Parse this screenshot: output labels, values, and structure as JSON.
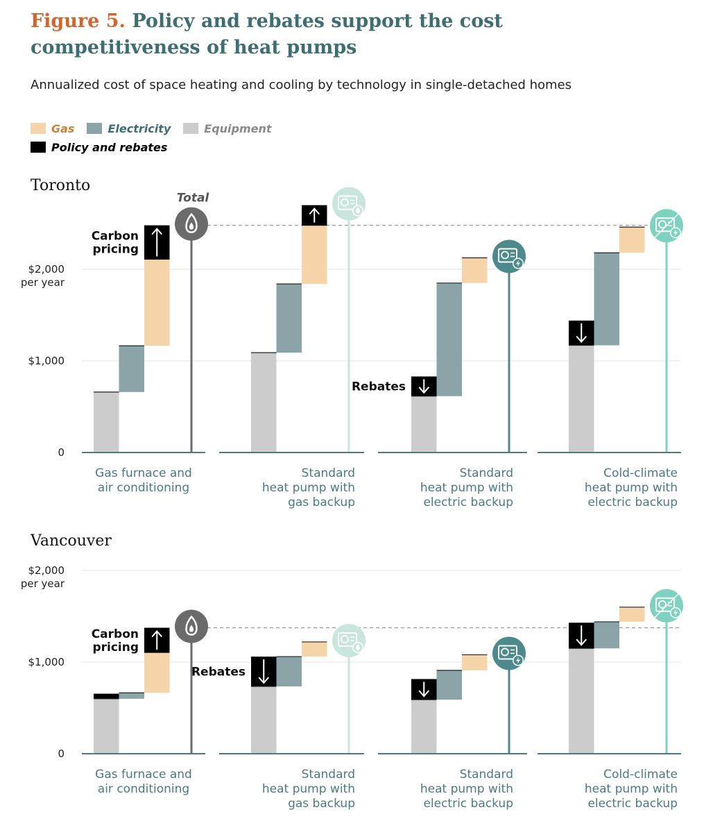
{
  "title": {
    "figure_number": "Figure 5.",
    "text": "Policy and rebates support the cost competitiveness of heat pumps"
  },
  "subtitle": "Annualized cost of space heating and cooling by technology in single-detached homes",
  "legend": [
    {
      "key": "gas",
      "label": "Gas",
      "color": "#f7d5aa",
      "text_color": "#c9823a"
    },
    {
      "key": "electricity",
      "label": "Electricity",
      "color": "#8aa4a8",
      "text_color": "#3e6e72"
    },
    {
      "key": "equipment",
      "label": "Equipment",
      "color": "#cccccc",
      "text_color": "#8a8a8a"
    },
    {
      "key": "policy",
      "label": "Policy and rebates",
      "color": "#000000",
      "text_color": "#000000"
    }
  ],
  "icon_names": [
    "gas-flame-icon",
    "heat-pump-gas-backup-icon",
    "heat-pump-electric-backup-icon",
    "cold-climate-heat-pump-icon"
  ],
  "colors": {
    "gas_total_line": "#6b6b6b",
    "hp_gas_line": "#c8e6de",
    "hp_elec_line": "#4d8a8c",
    "cold_climate_line": "#7dd3c0",
    "axis": "#4c7a80",
    "grid": "#e6e6e6"
  },
  "chart_data": [
    {
      "type": "bar",
      "subtype": "waterfall",
      "title": "Toronto",
      "ylabel": "per year",
      "ylim": [
        0,
        2500
      ],
      "yticks": [
        {
          "value": 0,
          "label": "0"
        },
        {
          "value": 1000,
          "label": "$1,000"
        },
        {
          "value": 2000,
          "label": "$2,000"
        }
      ],
      "total_label": "Total",
      "categories": [
        {
          "label": [
            "Gas furnace and",
            "air conditioning"
          ],
          "align": "center",
          "icon": "gas-flame-icon",
          "steps": [
            {
              "component": "equipment",
              "from": 0,
              "to": 660
            },
            {
              "component": "electricity",
              "from": 660,
              "to": 1165
            },
            {
              "component": "gas",
              "from": 1165,
              "to": 2110
            },
            {
              "component": "policy",
              "from": 2110,
              "to": 2480,
              "arrow": "up",
              "annotation": [
                "Carbon",
                "pricing"
              ]
            }
          ],
          "total": 2480
        },
        {
          "label": [
            "Standard",
            "heat pump with",
            "gas backup"
          ],
          "align": "right",
          "icon": "heat-pump-gas-backup-icon",
          "steps": [
            {
              "component": "equipment",
              "from": 0,
              "to": 1090
            },
            {
              "component": "electricity",
              "from": 1090,
              "to": 1840
            },
            {
              "component": "gas",
              "from": 1840,
              "to": 2480
            },
            {
              "component": "policy",
              "from": 2480,
              "to": 2700,
              "arrow": "up"
            }
          ],
          "total": 2700
        },
        {
          "label": [
            "Standard",
            "heat pump with",
            "electric backup"
          ],
          "align": "right",
          "icon": "heat-pump-electric-backup-icon",
          "steps": [
            {
              "component": "policy",
              "from": 615,
              "to": 830,
              "arrow": "down",
              "annotation": [
                "Rebates"
              ]
            },
            {
              "component": "equipment",
              "from": 0,
              "to": 615
            },
            {
              "component": "electricity",
              "from": 615,
              "to": 1850
            },
            {
              "component": "gas",
              "from": 1850,
              "to": 2125
            }
          ],
          "total": 2125
        },
        {
          "label": [
            "Cold-climate",
            "heat pump with",
            "electric backup"
          ],
          "align": "right",
          "icon": "cold-climate-heat-pump-icon",
          "steps": [
            {
              "component": "policy",
              "from": 1170,
              "to": 1440,
              "arrow": "down"
            },
            {
              "component": "equipment",
              "from": 0,
              "to": 1170
            },
            {
              "component": "electricity",
              "from": 1170,
              "to": 2180
            },
            {
              "component": "gas",
              "from": 2180,
              "to": 2460
            }
          ],
          "total": 2460
        }
      ],
      "reference_total": 2480
    },
    {
      "type": "bar",
      "subtype": "waterfall",
      "title": "Vancouver",
      "ylabel": "per year",
      "ylim": [
        0,
        2000
      ],
      "yticks": [
        {
          "value": 0,
          "label": "0"
        },
        {
          "value": 1000,
          "label": "$1,000"
        },
        {
          "value": 2000,
          "label": "$2,000"
        }
      ],
      "categories": [
        {
          "label": [
            "Gas furnace and",
            "air conditioning"
          ],
          "align": "center",
          "icon": "gas-flame-icon",
          "steps": [
            {
              "component": "policy",
              "from": 600,
              "to": 655
            },
            {
              "component": "equipment",
              "from": 0,
              "to": 600
            },
            {
              "component": "electricity",
              "from": 600,
              "to": 665
            },
            {
              "component": "gas",
              "from": 665,
              "to": 1105
            },
            {
              "component": "policy",
              "from": 1105,
              "to": 1375,
              "arrow": "up",
              "annotation": [
                "Carbon",
                "pricing"
              ]
            }
          ],
          "total": 1375
        },
        {
          "label": [
            "Standard",
            "heat pump with",
            "gas backup"
          ],
          "align": "right",
          "icon": "heat-pump-gas-backup-icon",
          "steps": [
            {
              "component": "policy",
              "from": 735,
              "to": 1060,
              "arrow": "down",
              "annotation": [
                "Rebates"
              ]
            },
            {
              "component": "equipment",
              "from": 0,
              "to": 735
            },
            {
              "component": "electricity",
              "from": 735,
              "to": 1060
            },
            {
              "component": "gas",
              "from": 1060,
              "to": 1220
            }
          ],
          "total": 1220
        },
        {
          "label": [
            "Standard",
            "heat pump with",
            "electric backup"
          ],
          "align": "right",
          "icon": "heat-pump-electric-backup-icon",
          "steps": [
            {
              "component": "policy",
              "from": 590,
              "to": 815,
              "arrow": "down"
            },
            {
              "component": "equipment",
              "from": 0,
              "to": 590
            },
            {
              "component": "electricity",
              "from": 590,
              "to": 910
            },
            {
              "component": "gas",
              "from": 910,
              "to": 1080
            }
          ],
          "total": 1080
        },
        {
          "label": [
            "Cold-climate",
            "heat pump with",
            "electric backup"
          ],
          "align": "right",
          "icon": "cold-climate-heat-pump-icon",
          "steps": [
            {
              "component": "policy",
              "from": 1150,
              "to": 1430,
              "arrow": "down"
            },
            {
              "component": "equipment",
              "from": 0,
              "to": 1150
            },
            {
              "component": "electricity",
              "from": 1150,
              "to": 1440
            },
            {
              "component": "gas",
              "from": 1440,
              "to": 1600
            }
          ],
          "total": 1600
        }
      ],
      "reference_total": 1375
    }
  ]
}
